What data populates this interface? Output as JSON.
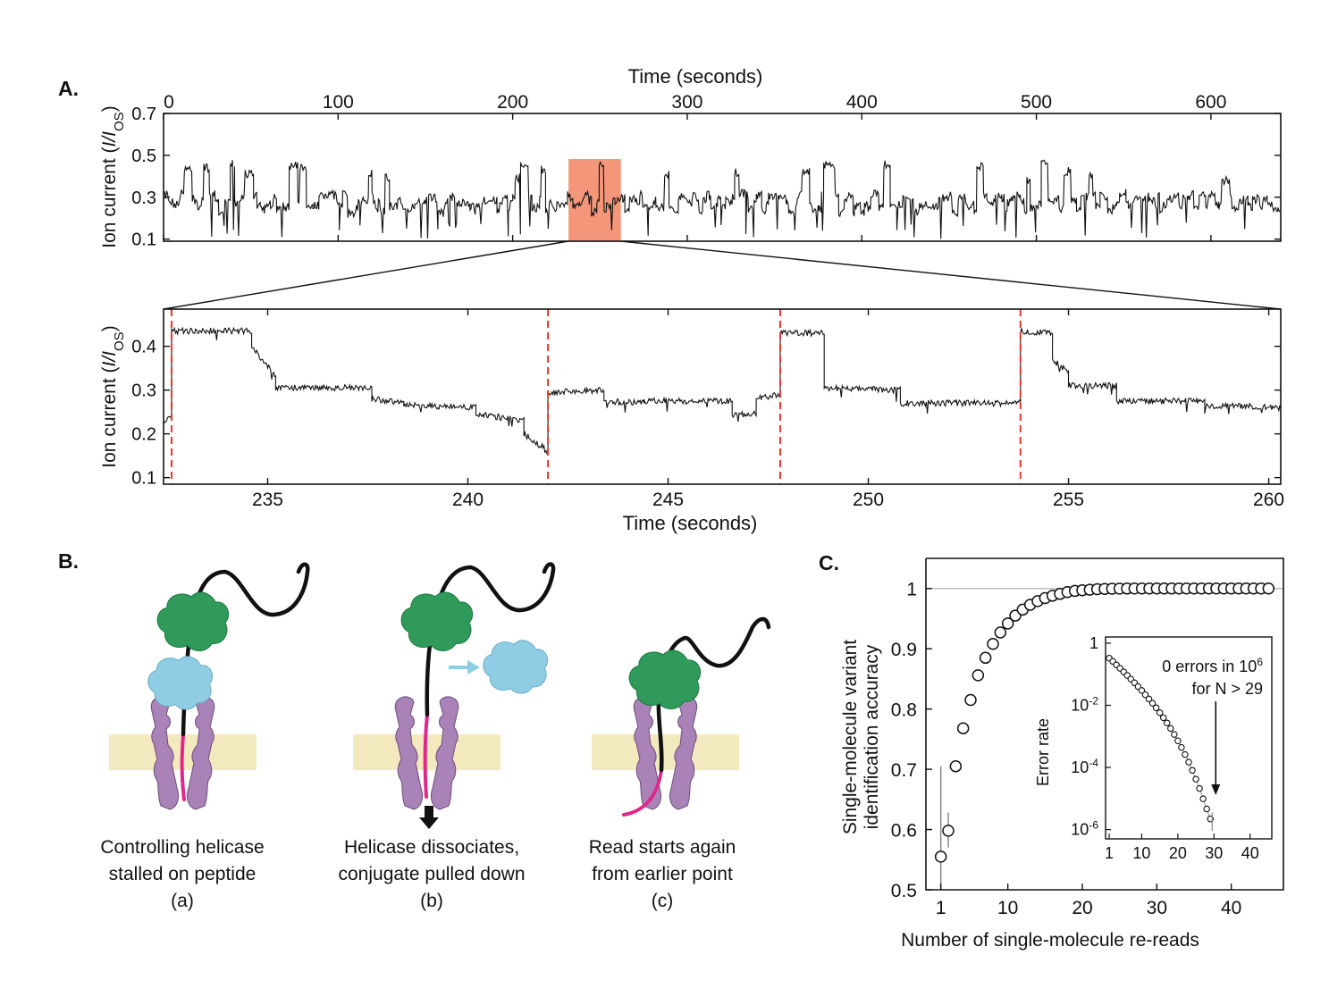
{
  "panels": {
    "A": "A.",
    "B": "B.",
    "C": "C."
  },
  "chart_data": [
    {
      "type": "line",
      "panel": "A-top",
      "xlabel": "Time (seconds)",
      "ylabel_prefix": "Ion current (",
      "ylabel_italic": "I/I",
      "ylabel_sub": "OS",
      "ylabel_suffix": ")",
      "xlim": [
        0,
        640
      ],
      "ylim": [
        0.09,
        0.7
      ],
      "xticks": [
        0,
        100,
        200,
        300,
        400,
        500,
        600
      ],
      "yticks": [
        0.1,
        0.3,
        0.5,
        0.7
      ],
      "highlight": {
        "x": [
          232,
          262
        ],
        "color": "#f4967a"
      },
      "trace_color": "#111111"
    },
    {
      "type": "line",
      "panel": "A-bottom",
      "xlabel": "Time (seconds)",
      "ylabel_prefix": "Ion current (",
      "ylabel_italic": "I/I",
      "ylabel_sub": "OS",
      "ylabel_suffix": ")",
      "xlim": [
        232.4,
        260.3
      ],
      "ylim": [
        0.085,
        0.485
      ],
      "xticks": [
        235,
        240,
        245,
        250,
        255,
        260
      ],
      "yticks": [
        0.1,
        0.2,
        0.3,
        0.4
      ],
      "dashed_lines_x": [
        232.6,
        242.0,
        247.8,
        253.8
      ],
      "dashed_color": "#e8352a",
      "segments": [
        {
          "x": [
            232.4,
            232.6
          ],
          "y": [
            0.225,
            0.24
          ]
        },
        {
          "x": [
            232.6,
            234.6
          ],
          "y": [
            0.435,
            0.435
          ]
        },
        {
          "x": [
            234.6,
            235.2
          ],
          "y": [
            0.4,
            0.33
          ]
        },
        {
          "x": [
            235.2,
            237.6
          ],
          "y": [
            0.305,
            0.305
          ]
        },
        {
          "x": [
            237.6,
            238.4
          ],
          "y": [
            0.28,
            0.27
          ]
        },
        {
          "x": [
            238.4,
            240.2
          ],
          "y": [
            0.265,
            0.26
          ]
        },
        {
          "x": [
            240.2,
            241.4
          ],
          "y": [
            0.245,
            0.23
          ]
        },
        {
          "x": [
            241.4,
            242.0
          ],
          "y": [
            0.2,
            0.16
          ]
        },
        {
          "x": [
            242.0,
            243.4
          ],
          "y": [
            0.295,
            0.3
          ]
        },
        {
          "x": [
            243.4,
            244.4
          ],
          "y": [
            0.275,
            0.27
          ]
        },
        {
          "x": [
            244.4,
            246.6
          ],
          "y": [
            0.275,
            0.275
          ]
        },
        {
          "x": [
            246.6,
            247.2
          ],
          "y": [
            0.245,
            0.245
          ]
        },
        {
          "x": [
            247.2,
            247.8
          ],
          "y": [
            0.28,
            0.29
          ]
        },
        {
          "x": [
            247.8,
            248.9
          ],
          "y": [
            0.43,
            0.43
          ]
        },
        {
          "x": [
            248.9,
            250.8
          ],
          "y": [
            0.305,
            0.3
          ]
        },
        {
          "x": [
            250.8,
            253.8
          ],
          "y": [
            0.27,
            0.27
          ]
        },
        {
          "x": [
            253.8,
            254.6
          ],
          "y": [
            0.435,
            0.43
          ]
        },
        {
          "x": [
            254.6,
            255.0
          ],
          "y": [
            0.37,
            0.34
          ]
        },
        {
          "x": [
            255.0,
            256.2
          ],
          "y": [
            0.31,
            0.31
          ]
        },
        {
          "x": [
            256.2,
            258.4
          ],
          "y": [
            0.275,
            0.275
          ]
        },
        {
          "x": [
            258.4,
            260.3
          ],
          "y": [
            0.265,
            0.26
          ]
        }
      ],
      "trace_color": "#111111"
    },
    {
      "type": "scatter",
      "panel": "C",
      "xlabel": "Number of single-molecule re-reads",
      "ylabel": [
        "Single-molecule variant",
        "identification accuracy"
      ],
      "xlim": [
        -1,
        47
      ],
      "ylim": [
        0.5,
        1.05
      ],
      "xticks": [
        1,
        10,
        20,
        30,
        40
      ],
      "yticks": [
        0.5,
        0.6,
        0.7,
        0.8,
        0.9,
        1
      ],
      "reference_line_y": 1,
      "x": [
        1,
        2,
        3,
        4,
        5,
        6,
        7,
        8,
        9,
        10,
        11,
        12,
        13,
        14,
        15,
        16,
        17,
        18,
        19,
        20,
        21,
        22,
        23,
        24,
        25,
        26,
        27,
        28,
        29,
        30,
        31,
        32,
        33,
        34,
        35,
        36,
        37,
        38,
        39,
        40,
        41,
        42,
        43,
        44,
        45
      ],
      "y": [
        0.555,
        0.598,
        0.705,
        0.768,
        0.815,
        0.856,
        0.885,
        0.908,
        0.927,
        0.942,
        0.955,
        0.965,
        0.973,
        0.979,
        0.984,
        0.988,
        0.991,
        0.994,
        0.996,
        0.997,
        0.998,
        0.9988,
        0.9993,
        0.9996,
        0.9998,
        0.9999,
        1,
        1,
        1,
        1,
        1,
        1,
        1,
        1,
        1,
        1,
        1,
        1,
        1,
        1,
        1,
        1,
        1,
        1,
        1
      ],
      "error_bars": [
        {
          "x": 1,
          "low": 0.5,
          "high": 0.705
        },
        {
          "x": 2,
          "low": 0.57,
          "high": 0.628
        },
        {
          "x": 3,
          "low": 0.695,
          "high": 0.715
        }
      ],
      "inset": {
        "ylabel": "Error rate",
        "xlim": [
          0,
          46
        ],
        "log_ylim": [
          -6.3,
          0.2
        ],
        "xticks": [
          1,
          10,
          20,
          30,
          40
        ],
        "yticks": [
          {
            "exp": 0,
            "label": "1"
          },
          {
            "exp": -2,
            "base": "10",
            "sup": "-2"
          },
          {
            "exp": -4,
            "base": "10",
            "sup": "-4"
          },
          {
            "exp": -6,
            "base": "10",
            "sup": "-6"
          }
        ],
        "x": [
          1,
          2,
          3,
          4,
          5,
          6,
          7,
          8,
          9,
          10,
          11,
          12,
          13,
          14,
          15,
          16,
          17,
          18,
          19,
          20,
          21,
          22,
          23,
          24,
          25,
          26,
          27,
          28,
          29
        ],
        "error_rate": [
          0.33,
          0.26,
          0.2,
          0.155,
          0.12,
          0.092,
          0.07,
          0.053,
          0.04,
          0.03,
          0.022,
          0.016,
          0.0117,
          0.0083,
          0.0058,
          0.004,
          0.0027,
          0.0018,
          0.00115,
          0.00072,
          0.00044,
          0.00026,
          0.000148,
          8.1e-05,
          4.2e-05,
          2.1e-05,
          9.8e-06,
          4.6e-06,
          2.2e-06
        ],
        "annotation": {
          "line1": "0 errors in 10",
          "sup": "6",
          "line2": "for N > 29"
        },
        "arrow_x": 29.5
      }
    }
  ],
  "panel_b": {
    "captions": [
      {
        "line1": "Controlling helicase",
        "line2": "stalled on peptide",
        "label": "(a)"
      },
      {
        "line1": "Helicase dissociates,",
        "line2": "conjugate pulled down",
        "label": "(b)"
      },
      {
        "line1": "Read starts again",
        "line2": "from earlier point",
        "label": "(c)"
      }
    ],
    "colors": {
      "membrane": "#f3e9be",
      "pore": "#a983b8",
      "helicase": "#2f9a5a",
      "blue_protein": "#8ecde3",
      "peptide": "#e0288a",
      "dna": "#111111"
    }
  }
}
